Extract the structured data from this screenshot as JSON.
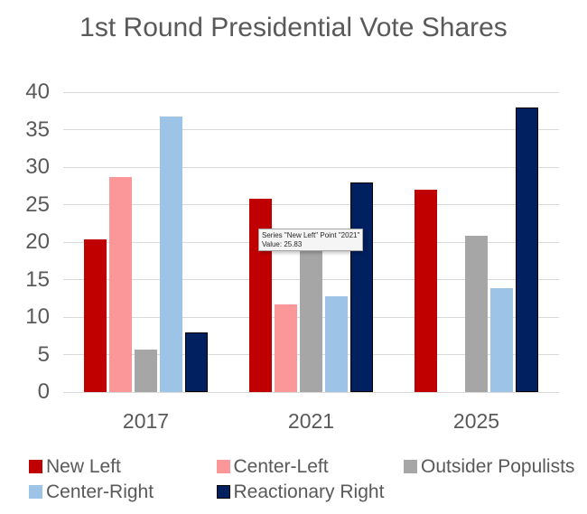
{
  "chart_data": {
    "type": "bar",
    "title": "1st Round Presidential Vote Shares",
    "categories": [
      "2017",
      "2021",
      "2025"
    ],
    "yticks": [
      "0",
      "5",
      "10",
      "15",
      "20",
      "25",
      "30",
      "35",
      "40"
    ],
    "ylim": [
      0,
      40
    ],
    "grid": true,
    "legend_position": "bottom",
    "series": [
      {
        "name": "New Left",
        "color": "#C00000",
        "values": [
          20.4,
          25.83,
          27.0
        ]
      },
      {
        "name": "Center-Left",
        "color": "#FB9799",
        "values": [
          28.7,
          11.7,
          null
        ]
      },
      {
        "name": "Outsider Populists",
        "color": "#A6A6A6",
        "values": [
          5.7,
          19.9,
          20.9
        ]
      },
      {
        "name": "Center-Right",
        "color": "#9DC3E6",
        "values": [
          36.8,
          12.8,
          13.9
        ]
      },
      {
        "name": "Reactionary Right",
        "color": "#002060",
        "border_color": "#000000",
        "values": [
          8.0,
          27.9,
          38.0
        ]
      }
    ]
  },
  "tooltip": {
    "line1": "Series \"New Left\" Point \"2021\"",
    "line2": "Value: 25.83"
  }
}
